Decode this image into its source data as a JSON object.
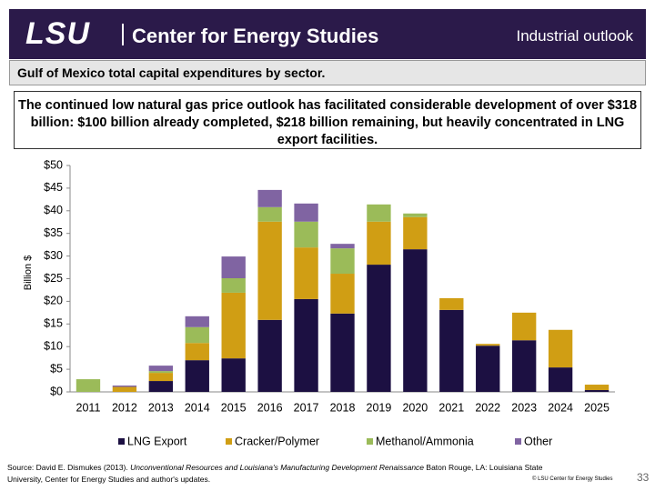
{
  "header": {
    "logo": "LSU",
    "center": "Center for Energy Studies",
    "section": "Industrial outlook"
  },
  "slide_title": "Gulf of Mexico total capital expenditures by sector.",
  "summary": "The continued low natural gas price outlook has facilitated considerable development of over $318 billion: $100 billion already completed, $218 billion remaining, but heavily concentrated in LNG export facilities.",
  "chart_data": {
    "type": "stacked_bar",
    "y_label": "Billion $",
    "categories": [
      "2011",
      "2012",
      "2013",
      "2014",
      "2015",
      "2016",
      "2017",
      "2018",
      "2019",
      "2020",
      "2021",
      "2022",
      "2023",
      "2024",
      "2025"
    ],
    "series": [
      {
        "name": "LNG Export",
        "color": "#1c1042",
        "values": [
          0,
          0,
          2.4,
          7.0,
          7.4,
          15.9,
          20.5,
          17.3,
          28.1,
          31.5,
          18.1,
          10.2,
          11.4,
          5.4,
          0.4
        ]
      },
      {
        "name": "Cracker/Polymer",
        "color": "#d09e14",
        "values": [
          0,
          1.1,
          1.8,
          3.8,
          14.5,
          21.7,
          11.4,
          8.8,
          9.5,
          7.1,
          2.6,
          0.4,
          6.1,
          8.3,
          1.2
        ]
      },
      {
        "name": "Methanol/Ammonia",
        "color": "#9bbb59",
        "values": [
          2.8,
          0,
          0.4,
          3.5,
          3.2,
          3.2,
          5.7,
          5.6,
          3.8,
          0.8,
          0,
          0,
          0,
          0,
          0
        ]
      },
      {
        "name": "Other",
        "color": "#8064a2",
        "values": [
          0,
          0.3,
          1.2,
          2.4,
          4.8,
          3.8,
          4.0,
          1.0,
          0,
          0,
          0,
          0,
          0,
          0,
          0
        ]
      }
    ],
    "ylim": [
      0,
      50
    ],
    "yticks": [
      {
        "value": 0,
        "label": "$0"
      },
      {
        "value": 5,
        "label": "$5"
      },
      {
        "value": 10,
        "label": "$10"
      },
      {
        "value": 15,
        "label": "$15"
      },
      {
        "value": 20,
        "label": "$20"
      },
      {
        "value": 25,
        "label": "$25"
      },
      {
        "value": 30,
        "label": "$30"
      },
      {
        "value": 35,
        "label": "$35"
      },
      {
        "value": 40,
        "label": "$40"
      },
      {
        "value": 45,
        "label": "$45"
      },
      {
        "value": 50,
        "label": "$50"
      }
    ],
    "grid": false,
    "legend": "bottom"
  },
  "footer": {
    "source_prefix": "Source: David E. Dismukes (2013). ",
    "source_title": "Unconventional Resources and Louisiana's Manufacturing Development Renaissance",
    "source_suffix": " Baton Rouge, LA: Louisiana State University, Center for Energy Studies and author's updates.",
    "copyright": "© LSU Center for Energy Studies",
    "page": "33"
  }
}
